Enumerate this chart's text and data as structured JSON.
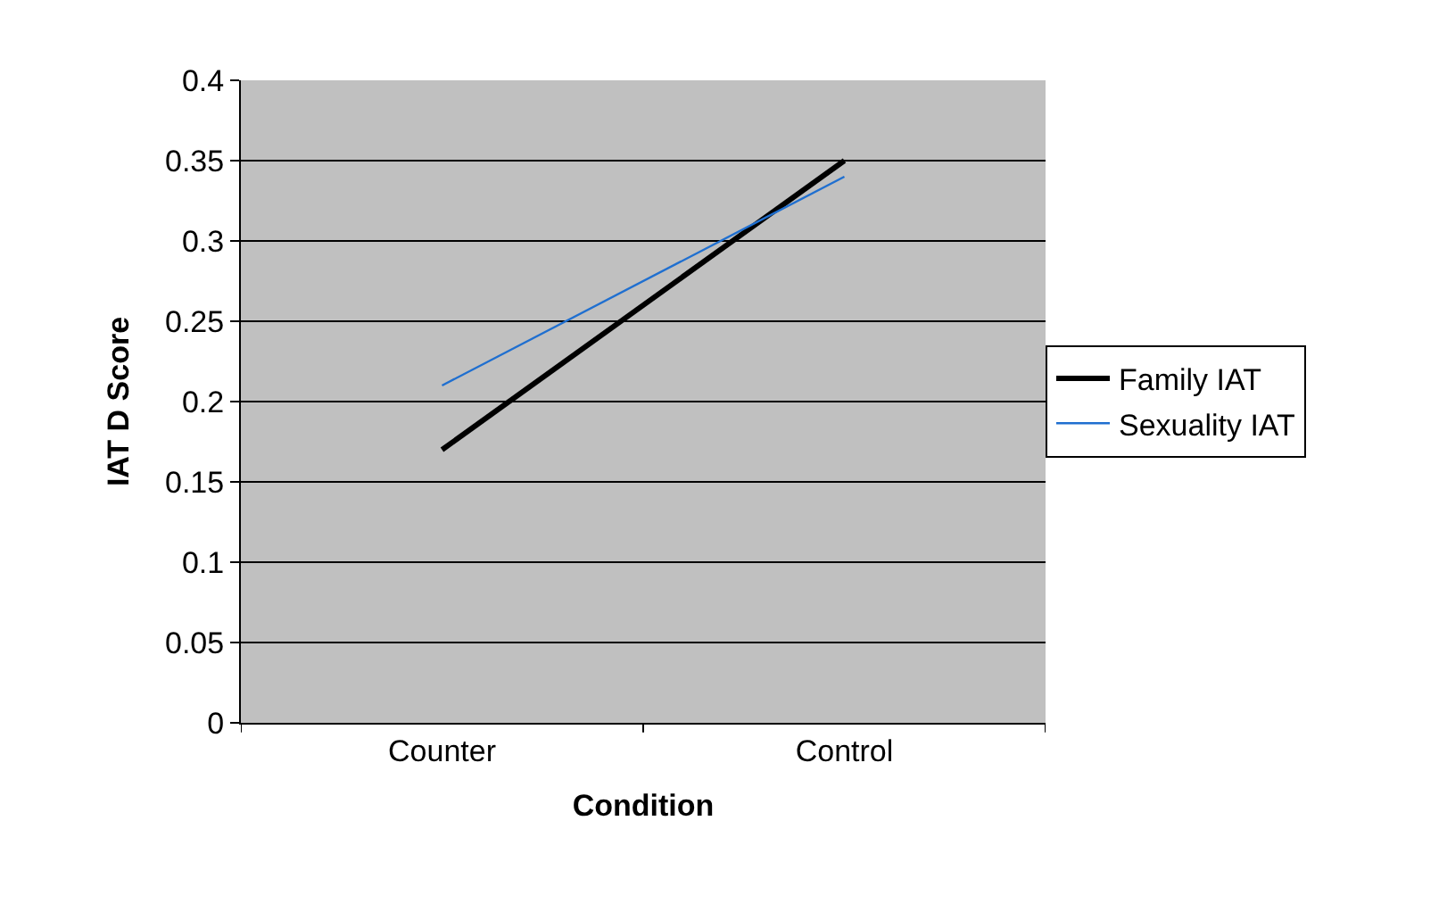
{
  "chart_data": {
    "type": "line",
    "xlabel": "Condition",
    "ylabel": "IAT D Score",
    "categories": [
      "Counter",
      "Control"
    ],
    "series": [
      {
        "name": "Family IAT",
        "color": "#000000",
        "values": [
          0.17,
          0.35
        ]
      },
      {
        "name": "Sexuality IAT",
        "color": "#1f6fd0",
        "values": [
          0.21,
          0.34
        ]
      }
    ],
    "ylim": [
      0,
      0.4
    ],
    "yticks": [
      0,
      0.05,
      0.1,
      0.15,
      0.2,
      0.25,
      0.3,
      0.35,
      0.4
    ],
    "grid": "y",
    "legend": "right",
    "marker": "none",
    "line_style": "solid"
  }
}
